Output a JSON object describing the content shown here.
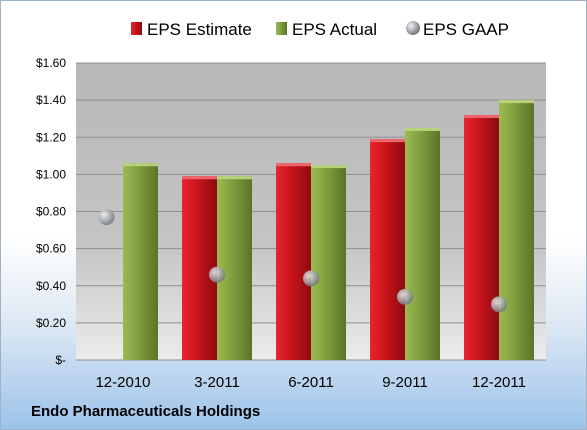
{
  "company_name": "Endo Pharmaceuticals Holdings",
  "chart_data": {
    "type": "bar",
    "title": "",
    "xlabel": "",
    "ylabel": "",
    "categories": [
      "12-2010",
      "3-2011",
      "6-2011",
      "9-2011",
      "12-2011"
    ],
    "series": [
      {
        "name": "EPS Estimate",
        "kind": "bar",
        "color": "#c0141c",
        "values": [
          null,
          0.99,
          1.06,
          1.19,
          1.32
        ]
      },
      {
        "name": "EPS Actual",
        "kind": "bar",
        "color": "#7c9a3a",
        "values": [
          1.06,
          0.99,
          1.05,
          1.25,
          1.4
        ]
      },
      {
        "name": "EPS GAAP",
        "kind": "marker",
        "color": "#a0a4a8",
        "values": [
          0.77,
          0.46,
          0.44,
          0.34,
          0.3
        ]
      }
    ],
    "ylim": [
      0,
      1.6
    ],
    "yticks": [
      {
        "value": 1.6,
        "label": "$1.60"
      },
      {
        "value": 1.4,
        "label": "$1.40"
      },
      {
        "value": 1.2,
        "label": "$1.20"
      },
      {
        "value": 1.0,
        "label": "$1.00"
      },
      {
        "value": 0.8,
        "label": "$0.80"
      },
      {
        "value": 0.6,
        "label": "$0.60"
      },
      {
        "value": 0.4,
        "label": "$0.40"
      },
      {
        "value": 0.2,
        "label": "$0.20"
      },
      {
        "value": 0.0,
        "label": "$-"
      }
    ],
    "grid": true,
    "legend_position": "top"
  }
}
